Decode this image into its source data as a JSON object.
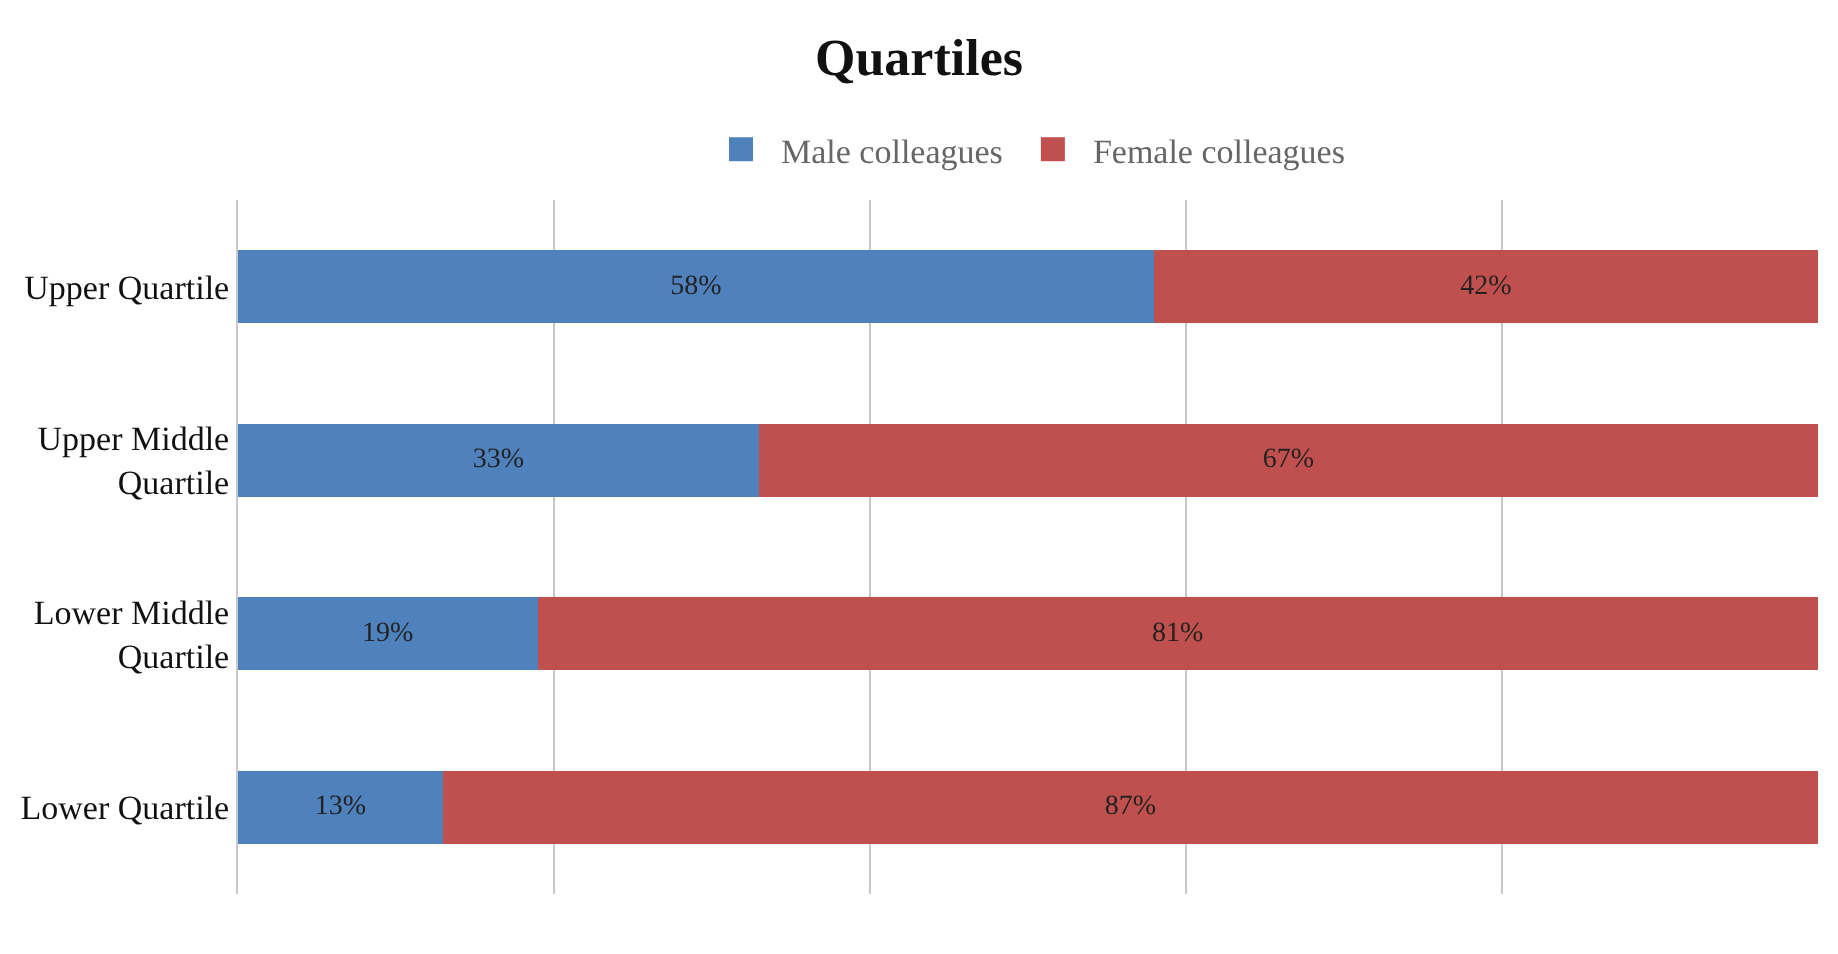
{
  "chart_data": {
    "type": "bar",
    "title": "Quartiles",
    "orientation": "horizontal",
    "stacked": true,
    "categories": [
      "Upper Quartile",
      "Upper Middle Quartile",
      "Lower Middle Quartile",
      "Lower Quartile"
    ],
    "series": [
      {
        "name": "Male colleagues",
        "color": "#4f81bd",
        "values": [
          58,
          33,
          19,
          13
        ],
        "value_labels": [
          "58%",
          "33%",
          "19%",
          "13%"
        ]
      },
      {
        "name": "Female colleagues",
        "color": "#c0504d",
        "values": [
          42,
          67,
          81,
          87
        ],
        "value_labels": [
          "42%",
          "67%",
          "81%",
          "87%"
        ]
      }
    ],
    "xlim": [
      0,
      100
    ],
    "xticks": [
      {
        "value": 20,
        "label": null
      },
      {
        "value": 40,
        "label": null
      },
      {
        "value": 60,
        "label": null
      },
      {
        "value": 80,
        "label": null
      }
    ],
    "grid": "x",
    "legend": "top",
    "tick_labels": "y"
  }
}
